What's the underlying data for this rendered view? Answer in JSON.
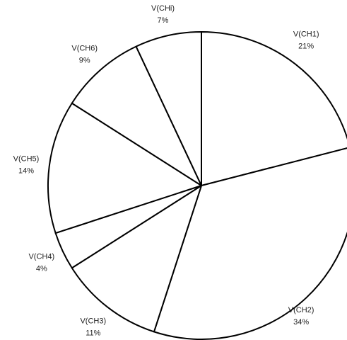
{
  "chart_data": {
    "type": "pie",
    "title": "",
    "categories": [
      "V(CH1)",
      "V(CH2)",
      "V(CH3)",
      "V(CH4)",
      "V(CH5)",
      "V(CH6)",
      "V(CHi)"
    ],
    "values": [
      21,
      34,
      11,
      4,
      14,
      9,
      7
    ],
    "percent_labels": [
      "21%",
      "34%",
      "11%",
      "4%",
      "14%",
      "9%",
      "7%"
    ],
    "start_angle_deg": 0,
    "direction": "clockwise",
    "legend": "none",
    "colors": {
      "fill": "#ffffff",
      "stroke": "#000000",
      "text": "#222222"
    }
  }
}
